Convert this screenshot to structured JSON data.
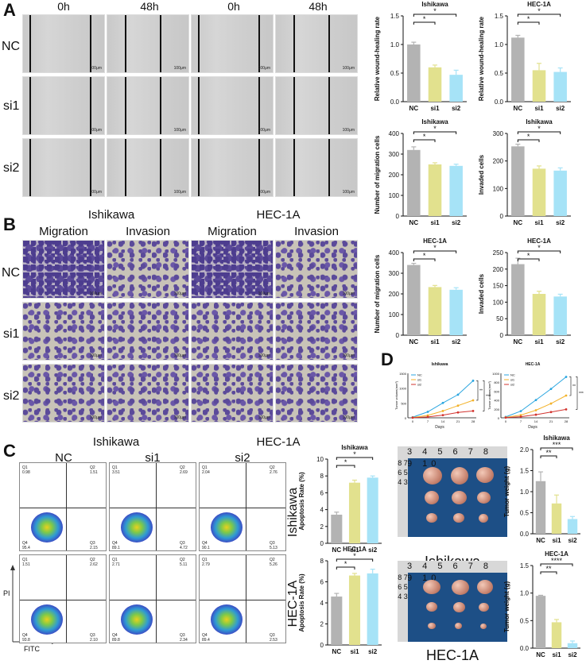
{
  "panels": {
    "A": {
      "letter": "A",
      "columns": [
        "0h",
        "48h",
        "0h",
        "48h"
      ],
      "rows": [
        "NC",
        "si1",
        "si2"
      ],
      "scale": "100μm"
    },
    "B": {
      "letter": "B",
      "groups": [
        "Ishikawa",
        "HEC-1A"
      ],
      "columns": [
        "Migration",
        "Invasion",
        "Migration",
        "Invasion"
      ],
      "rows": [
        "NC",
        "si1",
        "si2"
      ],
      "scale": "100μm"
    },
    "C": {
      "letter": "C",
      "groups": [
        "Ishikawa",
        "HEC-1A"
      ],
      "columns": [
        "NC",
        "si1",
        "si2"
      ],
      "rows": [
        "Ishikawa",
        "HEC-1A"
      ],
      "x_axis": "FITC",
      "y_axis": "PI",
      "quadrants": [
        [
          {
            "q1": "0.98",
            "q2": "1.51",
            "q3": "2.15",
            "q4": "95.4"
          },
          {
            "q1": "3.51",
            "q2": "2.69",
            "q3": "4.72",
            "q4": "89.1"
          },
          {
            "q1": "2.04",
            "q2": "2.76",
            "q3": "5.13",
            "q4": "90.1"
          }
        ],
        [
          {
            "q1": "1.51",
            "q2": "2.62",
            "q3": "2.10",
            "q4": "93.8"
          },
          {
            "q1": "2.71",
            "q2": "5.11",
            "q3": "2.34",
            "q4": "89.8"
          },
          {
            "q1": "2.79",
            "q2": "5.26",
            "q3": "2.53",
            "q4": "89.4"
          }
        ]
      ],
      "quadrant_names": {
        "q1": "Q1",
        "q2": "Q2",
        "q3": "Q3",
        "q4": "Q4"
      }
    },
    "D": {
      "letter": "D",
      "photo_labels": [
        "Ishikawa",
        "HEC-1A"
      ],
      "ruler_text": "3 4 5 6 7 8 9 10",
      "ruler_side": "8 7 6 5 4 3"
    }
  },
  "colors": {
    "NC": "#b3b3b3",
    "si1": "#e2e18e",
    "si2": "#a6e3f7",
    "line_nc": "#2aa6e0",
    "line_si1": "#f3b22a",
    "line_si2": "#d2342f"
  },
  "chart_data": [
    {
      "type": "bar",
      "title": "Ishikawa",
      "ylabel": "Relative wound-healing rate",
      "categories": [
        "NC",
        "si1",
        "si2"
      ],
      "values": [
        1.0,
        0.6,
        0.47
      ],
      "errors": [
        0.04,
        0.04,
        0.08
      ],
      "ylim": [
        0,
        1.5
      ],
      "yticks": [
        "0.0",
        "0.5",
        "1.0",
        "1.5"
      ],
      "sig": [
        "*",
        "*"
      ]
    },
    {
      "type": "bar",
      "title": "HEC-1A",
      "ylabel": "Relative wound-healing rate",
      "categories": [
        "NC",
        "si1",
        "si2"
      ],
      "values": [
        1.12,
        0.55,
        0.52
      ],
      "errors": [
        0.04,
        0.12,
        0.07
      ],
      "ylim": [
        0,
        1.5
      ],
      "yticks": [
        "0.0",
        "0.5",
        "1.0",
        "1.5"
      ],
      "sig": [
        "*",
        "*"
      ]
    },
    {
      "type": "bar",
      "title": "Ishikawa",
      "ylabel": "Number of migration cells",
      "categories": [
        "NC",
        "si1",
        "si2"
      ],
      "values": [
        320,
        250,
        243
      ],
      "errors": [
        15,
        8,
        8
      ],
      "ylim": [
        0,
        400
      ],
      "yticks": [
        "0",
        "100",
        "200",
        "300",
        "400"
      ],
      "sig": [
        "*",
        "*"
      ]
    },
    {
      "type": "bar",
      "title": "Ishikawa",
      "ylabel": "Invaded cells",
      "categories": [
        "NC",
        "si1",
        "si2"
      ],
      "values": [
        253,
        172,
        165
      ],
      "errors": [
        8,
        10,
        10
      ],
      "ylim": [
        0,
        300
      ],
      "yticks": [
        "0",
        "100",
        "200",
        "300"
      ],
      "sig": [
        "*",
        "*"
      ]
    },
    {
      "type": "bar",
      "title": "HEC-1A",
      "ylabel": "Number of migration cells",
      "categories": [
        "NC",
        "si1",
        "si2"
      ],
      "values": [
        340,
        233,
        220
      ],
      "errors": [
        8,
        8,
        10
      ],
      "ylim": [
        0,
        400
      ],
      "yticks": [
        "0",
        "100",
        "200",
        "300",
        "400"
      ],
      "sig": [
        "*",
        "*"
      ]
    },
    {
      "type": "bar",
      "title": "HEC-1A",
      "ylabel": "Invaded cells",
      "categories": [
        "NC",
        "si1",
        "si2"
      ],
      "values": [
        215,
        125,
        117
      ],
      "errors": [
        18,
        8,
        7
      ],
      "ylim": [
        0,
        250
      ],
      "yticks": [
        "0",
        "50",
        "100",
        "150",
        "200",
        "250"
      ],
      "sig": [
        "*",
        "*"
      ]
    },
    {
      "type": "line",
      "title": "Ishikawa",
      "ylabel": "Tumor volume(mm³)",
      "xlabel": "Days",
      "x": [
        0,
        7,
        14,
        21,
        28
      ],
      "series": [
        {
          "name": "NC",
          "values": [
            20,
            200,
            500,
            780,
            1250
          ]
        },
        {
          "name": "si1",
          "values": [
            10,
            80,
            230,
            410,
            590
          ]
        },
        {
          "name": "si2",
          "values": [
            5,
            30,
            90,
            180,
            230
          ]
        }
      ],
      "ylim": [
        0,
        1500
      ],
      "yticks": [
        "0",
        "500",
        "1000",
        "1500"
      ],
      "sig": [
        "**",
        "***"
      ]
    },
    {
      "type": "line",
      "title": "HEC-1A",
      "ylabel": "Tumor volume(mm³)",
      "xlabel": "Days",
      "x": [
        0,
        7,
        14,
        21,
        28
      ],
      "series": [
        {
          "name": "NC",
          "values": [
            20,
            150,
            400,
            650,
            920
          ]
        },
        {
          "name": "si1",
          "values": [
            10,
            60,
            170,
            320,
            500
          ]
        },
        {
          "name": "si2",
          "values": [
            5,
            25,
            70,
            130,
            190
          ]
        }
      ],
      "ylim": [
        0,
        1000
      ],
      "yticks": [
        "0",
        "200",
        "400",
        "600",
        "800",
        "1000"
      ],
      "sig": [
        "**",
        "***"
      ]
    },
    {
      "type": "bar",
      "title": "Ishikawa",
      "ylabel": "Apoptosis Rate (%)",
      "categories": [
        "NC",
        "si1",
        "si2"
      ],
      "values": [
        3.4,
        7.2,
        7.8
      ],
      "errors": [
        0.3,
        0.3,
        0.2
      ],
      "ylim": [
        0,
        10
      ],
      "yticks": [
        "0",
        "2",
        "4",
        "6",
        "8",
        "10"
      ],
      "sig": [
        "*",
        "*"
      ]
    },
    {
      "type": "bar",
      "title": "HEC-1A",
      "ylabel": "Apoptosis Rate (%)",
      "categories": [
        "NC",
        "si1",
        "si2"
      ],
      "values": [
        4.6,
        6.6,
        6.8
      ],
      "errors": [
        0.3,
        0.2,
        0.4
      ],
      "ylim": [
        0,
        8
      ],
      "yticks": [
        "0",
        "2",
        "4",
        "6",
        "8"
      ],
      "sig": [
        "*",
        "*"
      ]
    },
    {
      "type": "bar",
      "title": "Ishikawa",
      "ylabel": "Tumor weight (g)",
      "categories": [
        "NC",
        "si1",
        "si2"
      ],
      "values": [
        1.25,
        0.72,
        0.35
      ],
      "errors": [
        0.22,
        0.2,
        0.06
      ],
      "ylim": [
        0,
        2.0
      ],
      "yticks": [
        "0.0",
        "0.5",
        "1.0",
        "1.5",
        "2.0"
      ],
      "sig": [
        "**",
        "***"
      ]
    },
    {
      "type": "bar",
      "title": "HEC-1A",
      "ylabel": "Tumor weight (g)",
      "categories": [
        "NC",
        "si1",
        "si2"
      ],
      "values": [
        0.95,
        0.47,
        0.09
      ],
      "errors": [
        0.01,
        0.05,
        0.04
      ],
      "ylim": [
        0,
        1.5
      ],
      "yticks": [
        "0.0",
        "0.5",
        "1.0",
        "1.5"
      ],
      "sig": [
        "**",
        "****"
      ]
    }
  ]
}
